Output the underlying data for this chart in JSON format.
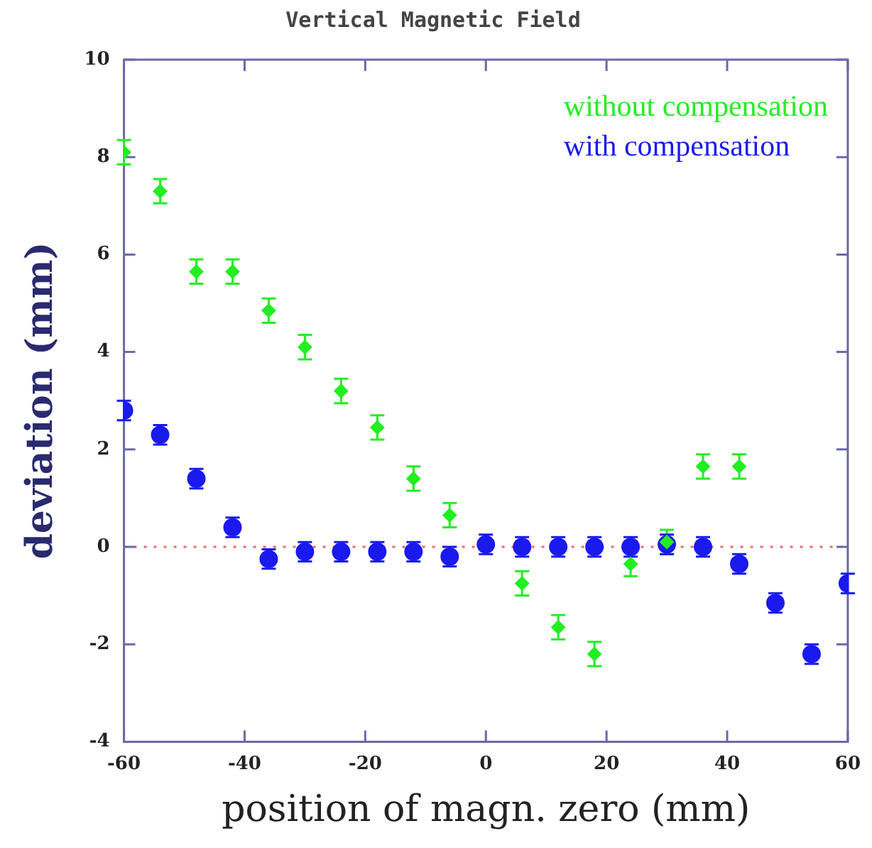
{
  "chart_data": {
    "type": "scatter",
    "title": "Vertical Magnetic Field",
    "xlabel": "position of magn. zero (mm)",
    "ylabel": "deviation (mm)",
    "x": [
      -60,
      -54,
      -48,
      -42,
      -36,
      -30,
      -24,
      -18,
      -12,
      -6,
      0,
      6,
      12,
      18,
      24,
      30,
      36,
      42,
      48,
      54,
      60
    ],
    "series": [
      {
        "name": "without compensation",
        "color": "#22ee22",
        "marker": "diamond",
        "values": [
          8.1,
          7.3,
          5.65,
          5.65,
          4.85,
          4.1,
          3.2,
          2.45,
          1.4,
          0.65,
          null,
          -0.75,
          -1.65,
          -2.2,
          -0.35,
          0.1,
          1.65,
          1.65,
          null,
          null,
          null
        ],
        "errors": [
          0.25,
          0.25,
          0.25,
          0.25,
          0.25,
          0.25,
          0.25,
          0.25,
          0.25,
          0.25,
          null,
          0.25,
          0.25,
          0.25,
          0.25,
          0.25,
          0.25,
          0.25,
          null,
          null,
          null
        ]
      },
      {
        "name": "with compensation",
        "color": "#1a1aee",
        "marker": "circle",
        "values": [
          2.8,
          2.3,
          1.4,
          0.4,
          -0.25,
          -0.1,
          -0.1,
          -0.1,
          -0.1,
          -0.2,
          0.05,
          0,
          0,
          0,
          0,
          0.05,
          0,
          -0.35,
          -1.15,
          -2.2,
          -0.75
        ],
        "errors": [
          0.2,
          0.2,
          0.2,
          0.2,
          0.2,
          0.2,
          0.2,
          0.2,
          0.2,
          0.2,
          0.2,
          0.2,
          0.2,
          0.2,
          0.2,
          0.2,
          0.2,
          0.2,
          0.2,
          0.2,
          0.2
        ]
      }
    ],
    "xlim": [
      -60,
      60
    ],
    "xticks": [
      -60,
      -40,
      -20,
      0,
      20,
      40,
      60
    ],
    "ylim": [
      -4,
      10
    ],
    "yticks": [
      -4,
      -2,
      0,
      2,
      4,
      6,
      8,
      10
    ],
    "ref_lines": [
      {
        "axis": "y",
        "value": 0,
        "color": "#ff6666",
        "line_style": "dotted"
      }
    ],
    "legend": "top right",
    "grid": false
  }
}
